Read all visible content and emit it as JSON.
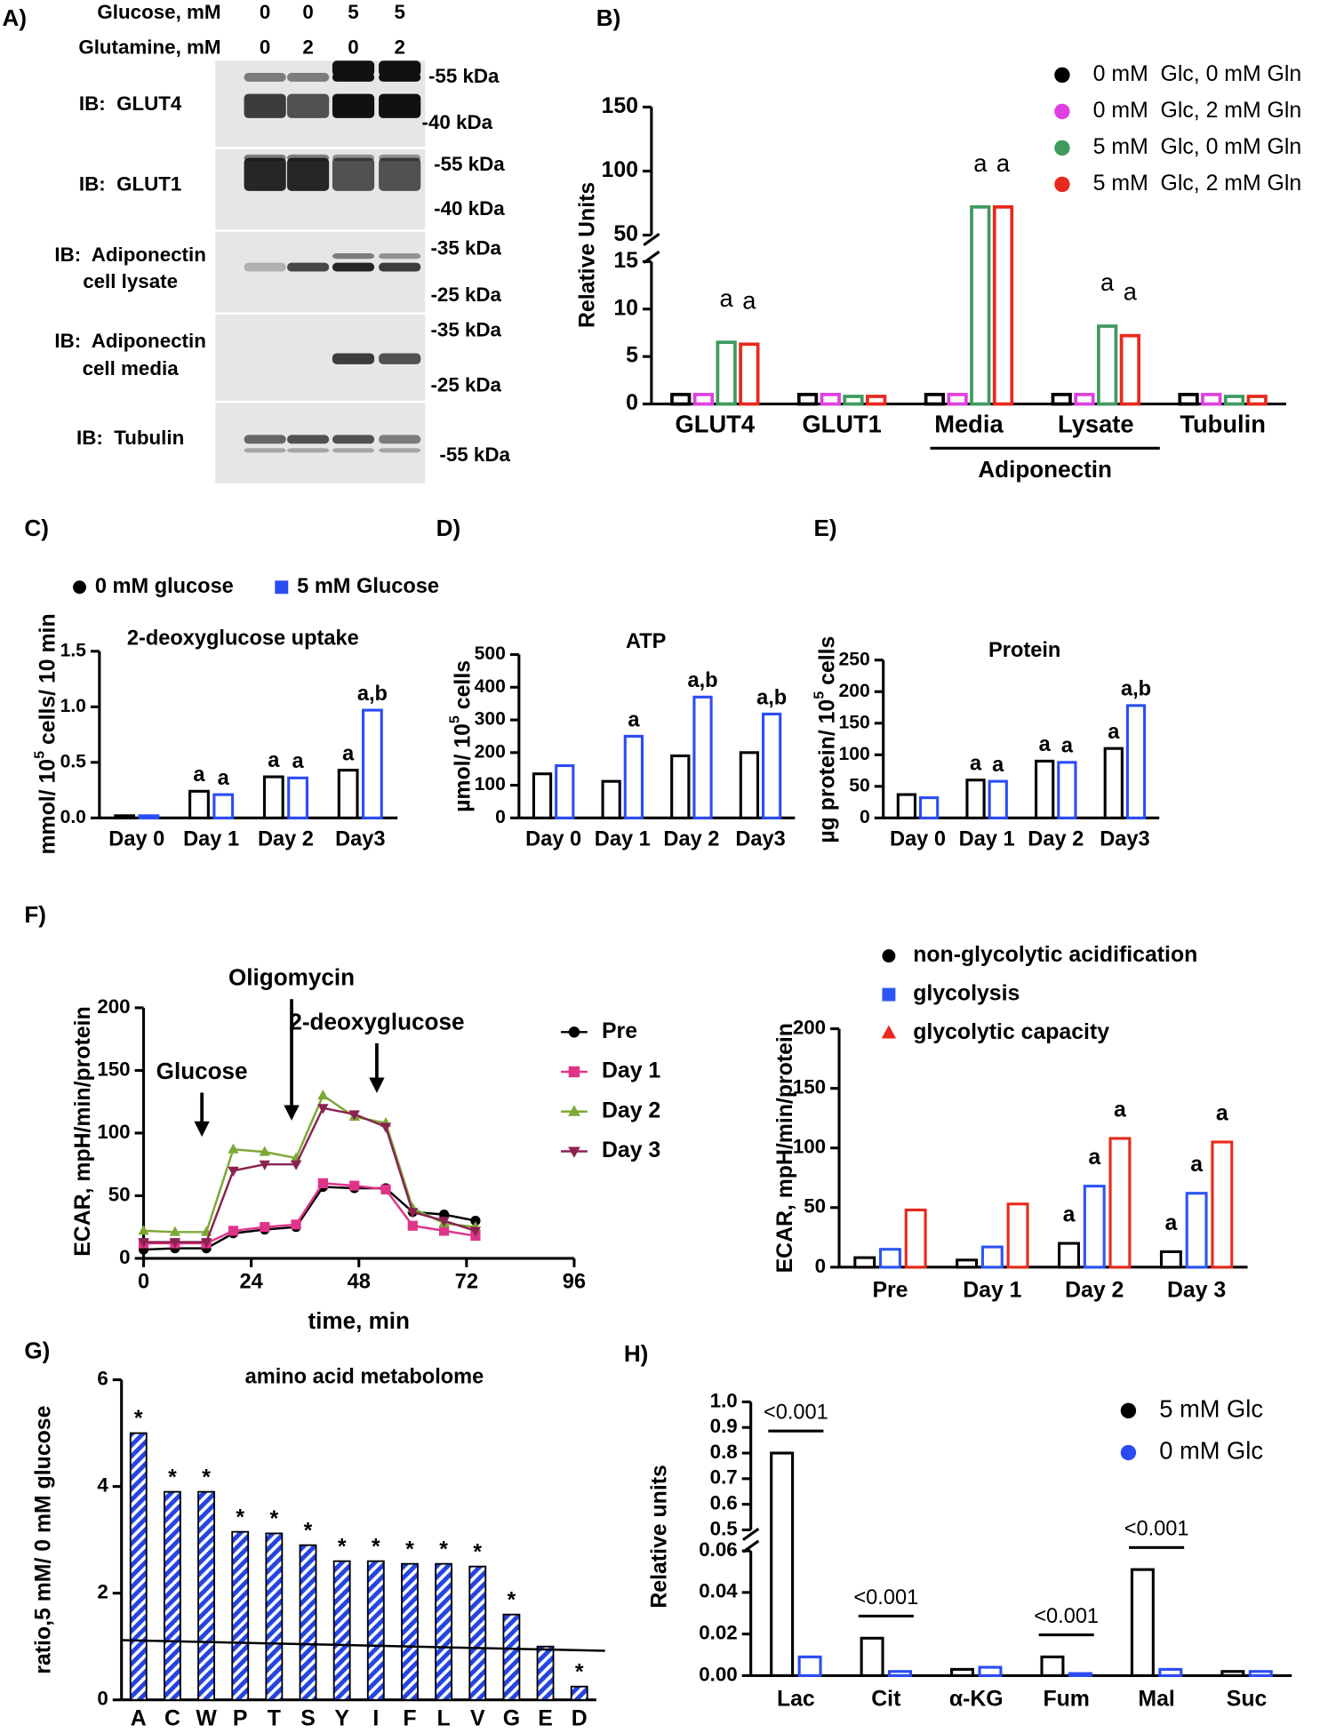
{
  "blot": {
    "panel": "A)",
    "conditions": [
      {
        "label": "Glucose, mM",
        "lanes": [
          "0",
          "0",
          "5",
          "5"
        ]
      },
      {
        "label": "Glutamine, mM",
        "lanes": [
          "0",
          "2",
          "0",
          "2"
        ]
      }
    ],
    "blots": [
      {
        "label": [
          "IB:  GLUT4"
        ],
        "markers": [
          "-55 kDa",
          "-40 kDa"
        ]
      },
      {
        "label": [
          "IB:  GLUT1"
        ],
        "markers": [
          "-55 kDa",
          "-40 kDa"
        ]
      },
      {
        "label": [
          "IB:  Adiponectin",
          "cell lysate"
        ],
        "markers": [
          "-35 kDa",
          "-25 kDa"
        ]
      },
      {
        "label": [
          "IB:  Adiponectin",
          "cell media"
        ],
        "markers": [
          "-35 kDa",
          "-25 kDa"
        ]
      },
      {
        "label": [
          "IB:  Tubulin"
        ],
        "markers": [
          "-55 kDa"
        ]
      }
    ]
  },
  "chart_data": [
    {
      "type": "bar",
      "panel": "B)",
      "ylabel": "Relative Units",
      "categories": [
        "GLUT4",
        "GLUT1",
        "Media",
        "Lysate",
        "Tubulin"
      ],
      "groups": [
        {
          "label": "Adiponectin",
          "from": 2,
          "to": 3
        }
      ],
      "ylim": [
        0,
        150
      ],
      "axis_break": [
        15,
        50
      ],
      "yticks": [
        0,
        5,
        10,
        15,
        50,
        100,
        150
      ],
      "series": [
        {
          "name": "0 mM  Glc, 0 mM Gln",
          "color": "#000000",
          "marker": "circle",
          "values": [
            1,
            1,
            1,
            1,
            1
          ]
        },
        {
          "name": "0 mM  Glc, 2 mM Gln",
          "color": "#e040e0",
          "marker": "circle",
          "values": [
            1,
            1,
            1,
            1,
            1
          ]
        },
        {
          "name": "5 mM  Glc, 0 mM Gln",
          "color": "#3f9a5f",
          "marker": "circle",
          "values": [
            6.5,
            0.8,
            72,
            8.2,
            0.8
          ],
          "value_labels": [
            "a",
            null,
            "a",
            "a",
            null
          ]
        },
        {
          "name": "5 mM  Glc, 2 mM Gln",
          "color": "#e8291c",
          "marker": "circle",
          "values": [
            6.3,
            0.8,
            72,
            7.2,
            0.8
          ],
          "value_labels": [
            "a",
            null,
            "a",
            "a",
            null
          ]
        }
      ]
    },
    {
      "type": "bar",
      "panel": "C)",
      "title": "2-deoxyglucose uptake",
      "ylabel": [
        "mmol/ 10",
        "5",
        " cells/ 10 min"
      ],
      "categories": [
        "Day 0",
        "Day 1",
        "Day 2",
        "Day3"
      ],
      "ylim": [
        0,
        1.5
      ],
      "yticks": [
        {
          "value": 0,
          "label": "0.0"
        },
        0.5,
        {
          "value": 1,
          "label": "1.0"
        },
        1.5
      ],
      "series": [
        {
          "name": "0 mM glucose",
          "color": "#000000",
          "marker": "circle",
          "values": [
            0.02,
            0.24,
            0.37,
            0.43
          ],
          "value_labels": [
            null,
            "a",
            "a",
            "a"
          ]
        },
        {
          "name": "5 mM Glucose",
          "color": "#2b4cf5",
          "marker": "square",
          "values": [
            0.02,
            0.21,
            0.36,
            0.97
          ],
          "value_labels": [
            null,
            "a",
            "a",
            "a,b"
          ]
        }
      ]
    },
    {
      "type": "bar",
      "panel": "D)",
      "title": "ATP",
      "ylabel": [
        "µmol/ 10",
        "5",
        " cells"
      ],
      "categories": [
        "Day 0",
        "Day 1",
        "Day 2",
        "Day3"
      ],
      "ylim": [
        0,
        500
      ],
      "yticks": [
        0,
        100,
        200,
        300,
        400,
        500
      ],
      "series": [
        {
          "color": "#000000",
          "values": [
            135,
            112,
            190,
            200
          ]
        },
        {
          "color": "#2b4cf5",
          "values": [
            160,
            250,
            370,
            318
          ],
          "value_labels": [
            null,
            "a",
            "a,b",
            "a,b"
          ]
        }
      ]
    },
    {
      "type": "bar",
      "panel": "E)",
      "title": "Protein",
      "ylabel": [
        "µg protein/ 10",
        "5",
        " cells"
      ],
      "categories": [
        "Day 0",
        "Day 1",
        "Day 2",
        "Day3"
      ],
      "ylim": [
        0,
        250
      ],
      "yticks": [
        0,
        50,
        100,
        150,
        200,
        250
      ],
      "series": [
        {
          "color": "#000000",
          "values": [
            37,
            60,
            90,
            110
          ],
          "value_labels": [
            null,
            "a",
            "a",
            "a"
          ]
        },
        {
          "color": "#2b4cf5",
          "values": [
            32,
            58,
            88,
            178
          ],
          "value_labels": [
            null,
            "a",
            "a",
            "a,b"
          ]
        }
      ]
    },
    {
      "type": "line",
      "panel": "F)",
      "xlabel": "time, min",
      "ylabel": "ECAR, mpH/min/protein",
      "x": [
        0,
        7,
        14,
        20,
        27,
        34,
        40,
        47,
        54,
        60,
        67,
        74
      ],
      "xlim": [
        0,
        96
      ],
      "xticks": [
        0,
        24,
        48,
        72,
        96
      ],
      "ylim": [
        0,
        200
      ],
      "yticks": [
        0,
        50,
        100,
        150,
        200
      ],
      "annotations": [
        {
          "text": "Glucose",
          "x": 13,
          "y": 97
        },
        {
          "text": "Oligomycin",
          "x": 33,
          "y": 110
        },
        {
          "text": "2-deoxyglucose",
          "x": 52,
          "y": 132
        }
      ],
      "series": [
        {
          "name": "Pre",
          "color": "#000000",
          "marker": "circle",
          "values": [
            7,
            8,
            8,
            20,
            23,
            25,
            57,
            56,
            56,
            37,
            35,
            30
          ]
        },
        {
          "name": "Day 1",
          "color": "#e0338a",
          "marker": "square",
          "values": [
            12,
            12,
            12,
            22,
            25,
            27,
            60,
            58,
            55,
            26,
            22,
            18
          ]
        },
        {
          "name": "Day 2",
          "color": "#7da836",
          "marker": "triangle",
          "values": [
            22,
            21,
            21,
            87,
            85,
            80,
            130,
            113,
            108,
            40,
            28,
            25
          ]
        },
        {
          "name": "Day 3",
          "color": "#8b2252",
          "marker": "triangle-down",
          "values": [
            13,
            13,
            13,
            70,
            75,
            75,
            120,
            115,
            105,
            37,
            30,
            22
          ]
        }
      ]
    },
    {
      "type": "bar",
      "ylabel": "ECAR, mpH/min/protein",
      "categories": [
        "Pre",
        "Day 1",
        "Day 2",
        "Day 3"
      ],
      "ylim": [
        0,
        200
      ],
      "yticks": [
        0,
        50,
        100,
        150,
        200
      ],
      "series": [
        {
          "name": "non-glycolytic acidification",
          "color": "#000000",
          "marker": "circle",
          "values": [
            8,
            6,
            20,
            13
          ],
          "value_labels": [
            null,
            null,
            "a",
            "a"
          ]
        },
        {
          "name": "glycolysis",
          "color": "#2b55f5",
          "marker": "square",
          "values": [
            15,
            17,
            68,
            62
          ],
          "value_labels": [
            null,
            null,
            "a",
            "a"
          ]
        },
        {
          "name": "glycolytic capacity",
          "color": "#e8291c",
          "marker": "triangle",
          "values": [
            48,
            53,
            108,
            105
          ],
          "value_labels": [
            null,
            null,
            "a",
            "a"
          ]
        }
      ]
    },
    {
      "type": "bar",
      "panel": "G)",
      "title": "amino acid metabolome",
      "ylabel": "ratio,5 mM/ 0 mM glucose",
      "categories": [
        "A",
        "C",
        "W",
        "P",
        "T",
        "S",
        "Y",
        "I",
        "F",
        "L",
        "V",
        "G",
        "E",
        "D"
      ],
      "ylim": [
        0,
        6
      ],
      "yticks": [
        0,
        2,
        4,
        6
      ],
      "reference_line": [
        1.12,
        0.92
      ],
      "series": [
        {
          "color": "#2545e0",
          "values": [
            5.0,
            3.9,
            3.9,
            3.15,
            3.12,
            2.9,
            2.6,
            2.6,
            2.55,
            2.55,
            2.5,
            1.6,
            1.0,
            0.25
          ],
          "value_labels": [
            "*",
            "*",
            "*",
            "*",
            "*",
            "*",
            "*",
            "*",
            "*",
            "*",
            "*",
            "*",
            null,
            "*"
          ]
        }
      ]
    },
    {
      "type": "bar",
      "panel": "H)",
      "ylabel": "Relative units",
      "categories": [
        "Lac",
        "Cit",
        "α-KG",
        "Fum",
        "Mal",
        "Suc"
      ],
      "ylim": [
        0,
        1
      ],
      "axis_break": [
        0.06,
        0.5
      ],
      "yticks": [
        {
          "value": 0,
          "label": "0.00"
        },
        0.02,
        0.04,
        0.06,
        0.5,
        0.6,
        0.7,
        0.8,
        0.9,
        {
          "value": 1,
          "label": "1.0"
        }
      ],
      "comparisons": [
        "<0.001",
        "<0.001",
        null,
        "<0.001",
        "<0.001",
        null
      ],
      "series": [
        {
          "name": "5 mM Glc",
          "color": "#000000",
          "marker": "circle",
          "values": [
            0.8,
            0.018,
            0.003,
            0.009,
            0.051,
            0.002
          ]
        },
        {
          "name": "0 mM Glc",
          "color": "#2b4cf5",
          "marker": "circle",
          "values": [
            0.009,
            0.002,
            0.004,
            0.001,
            0.003,
            0.002
          ]
        }
      ]
    }
  ]
}
